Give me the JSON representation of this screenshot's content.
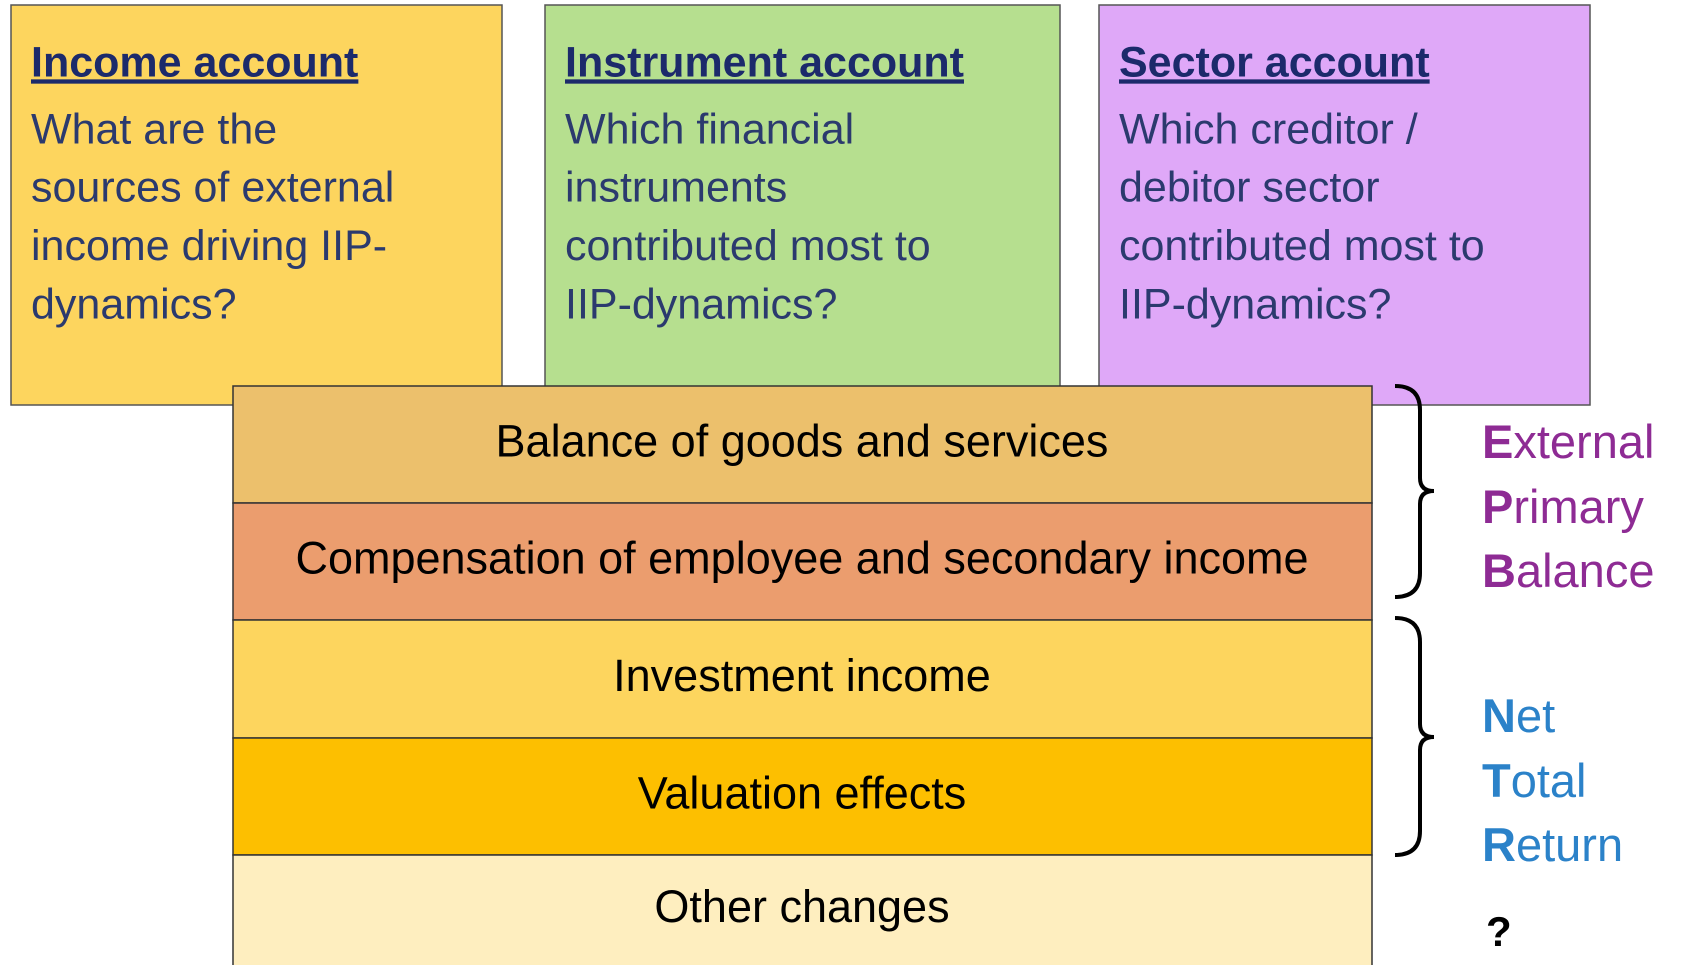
{
  "accounts": [
    {
      "title": "Income account",
      "lines": [
        "What are the",
        "sources of external",
        "income driving IIP-",
        "dynamics?"
      ]
    },
    {
      "title": "Instrument account",
      "lines": [
        "Which financial",
        "instruments",
        "contributed most to",
        "IIP-dynamics?"
      ]
    },
    {
      "title": "Sector account",
      "lines": [
        "Which creditor /",
        "debitor sector",
        "contributed most to",
        "IIP-dynamics?"
      ]
    }
  ],
  "layers": [
    "Balance of goods and services",
    "Compensation of employee and secondary income",
    "Investment income",
    "Valuation effects",
    "Other changes"
  ],
  "groups": [
    {
      "words": [
        {
          "initial": "E",
          "rest": "xternal"
        },
        {
          "initial": "P",
          "rest": "rimary"
        },
        {
          "initial": "B",
          "rest": "alance"
        }
      ]
    },
    {
      "words": [
        {
          "initial": "N",
          "rest": "et"
        },
        {
          "initial": "T",
          "rest": "otal"
        },
        {
          "initial": "R",
          "rest": "eturn"
        }
      ]
    }
  ],
  "unknown": "?"
}
